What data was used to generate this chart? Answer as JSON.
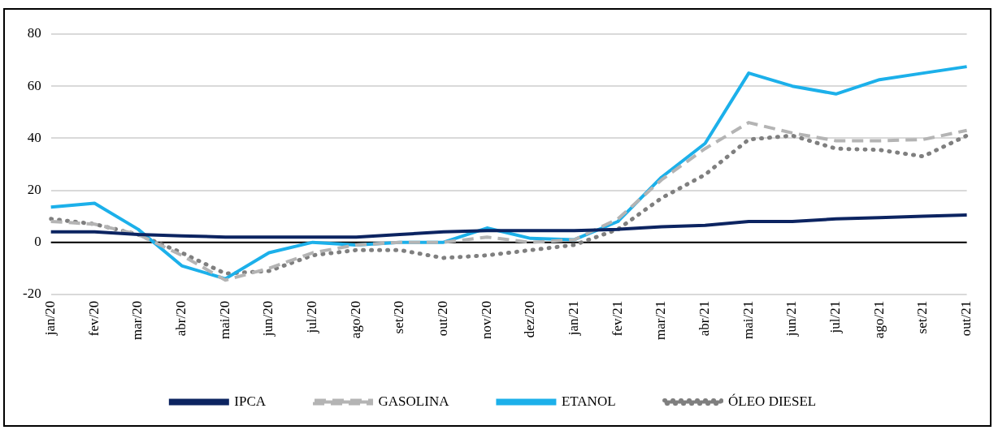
{
  "chart_data": {
    "type": "line",
    "categories": [
      "jan/20",
      "fev/20",
      "mar/20",
      "abr/20",
      "mai/20",
      "jun/20",
      "jul/20",
      "ago/20",
      "set/20",
      "out/20",
      "nov/20",
      "dez/20",
      "jan/21",
      "fev/21",
      "mar/21",
      "abr/21",
      "mai/21",
      "jun/21",
      "jul/21",
      "ago/21",
      "set/21",
      "out/21"
    ],
    "series": [
      {
        "name": "IPCA",
        "color": "#0c2461",
        "line_style": "solid",
        "values": [
          4,
          4,
          3,
          2.5,
          2,
          2,
          2,
          2,
          3,
          4,
          4.5,
          4.5,
          4.5,
          5,
          6,
          6.5,
          8,
          8,
          9,
          9.5,
          10,
          10.5
        ]
      },
      {
        "name": "GASOLINA",
        "color": "#b4b4b4",
        "line_style": "dashed",
        "values": [
          8,
          7,
          3,
          -5,
          -14.5,
          -10,
          -4,
          -1,
          0,
          0,
          2,
          0,
          1,
          9,
          24,
          36,
          46,
          42,
          39,
          39,
          39.5,
          43
        ]
      },
      {
        "name": "ETANOL",
        "color": "#1cb0ea",
        "line_style": "solid",
        "values": [
          13.5,
          15,
          5,
          -9,
          -14,
          -4,
          0,
          -1,
          0,
          0,
          5.5,
          1.5,
          1,
          8,
          25,
          38,
          65,
          60,
          57,
          62.5,
          65,
          67.5
        ]
      },
      {
        "name": "ÓLEO DIESEL",
        "color": "#7f7f7f",
        "line_style": "dotted",
        "values": [
          9,
          7,
          3,
          -4,
          -12,
          -11,
          -5,
          -3,
          -3,
          -6,
          -5,
          -3,
          -1,
          5,
          17,
          26,
          39.5,
          41,
          36,
          35.5,
          33,
          41
        ]
      }
    ],
    "ylim": [
      -20,
      80
    ],
    "yticks": [
      -20,
      0,
      20,
      40,
      60,
      80
    ],
    "grid": "y",
    "legend": "bottom",
    "marker": "none"
  }
}
